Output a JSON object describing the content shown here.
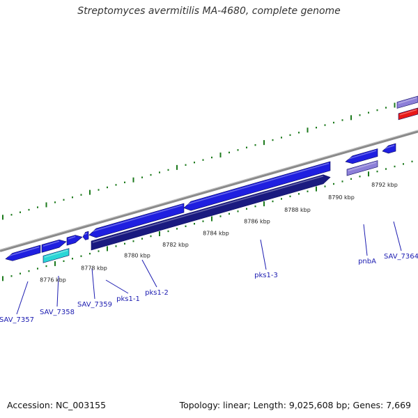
{
  "title": "Streptomyces avermitilis MA-4680, complete genome",
  "footer": {
    "accession": "Accession: NC_003155",
    "summary": "Topology: linear; Length: 9,025,608 bp; Genes: 7,669"
  },
  "colors": {
    "forward_gene": "#1f1fe0",
    "reverse_gene": "#1a1a80",
    "cyan_gene": "#2ad6d6",
    "lavender_gene": "#8c7fd8",
    "red_gene": "#e81818",
    "backbone": "#8a8a8a",
    "tick": "#1c7a1c",
    "label": "#1a1ab0"
  },
  "position_labels": [
    "8776 kbp",
    "8778 kbp",
    "8780 kbp",
    "8782 kbp",
    "8784 kbp",
    "8786 kbp",
    "8788 kbp",
    "8790 kbp",
    "8792 kbp"
  ],
  "gene_labels": [
    "SAV_7357",
    "SAV_7358",
    "SAV_7359",
    "pks1-1",
    "pks1-2",
    "pks1-3",
    "pnbA",
    "SAV_7364"
  ]
}
